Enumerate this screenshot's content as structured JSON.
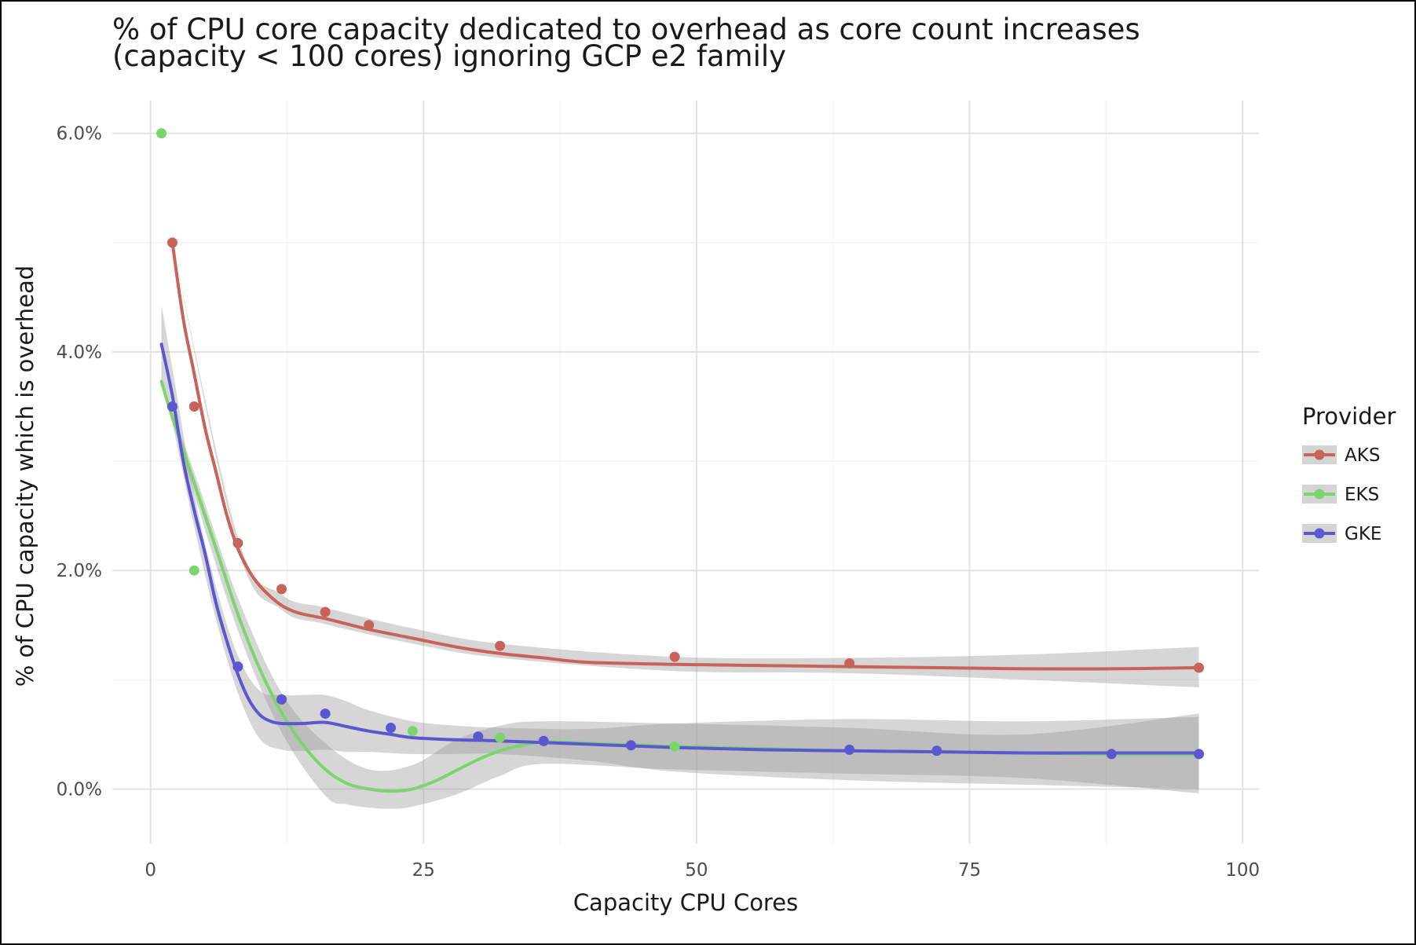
{
  "chart_data": {
    "type": "scatter",
    "title_lines": [
      "% of CPU core capacity dedicated to overhead as core count increases",
      "(capacity < 100 cores) ignoring GCP e2 family"
    ],
    "xlabel": "Capacity CPU Cores",
    "ylabel": "% of CPU capacity which is overhead",
    "xlim": [
      -3.5,
      101.5
    ],
    "ylim": [
      -0.5,
      6.3
    ],
    "x_ticks": [
      0,
      25,
      50,
      75,
      100
    ],
    "x_tick_labels": [
      "0",
      "25",
      "50",
      "75",
      "100"
    ],
    "y_ticks": [
      0,
      2,
      4,
      6
    ],
    "y_tick_labels": [
      "0.0%",
      "2.0%",
      "4.0%",
      "6.0%"
    ],
    "grid": true,
    "legend": {
      "title": "Provider",
      "position": "right"
    },
    "series": [
      {
        "name": "AKS",
        "color": "#c8635a",
        "points": [
          [
            2,
            5.0
          ],
          [
            4,
            3.5
          ],
          [
            8,
            2.25
          ],
          [
            12,
            1.83
          ],
          [
            16,
            1.62
          ],
          [
            20,
            1.5
          ],
          [
            32,
            1.31
          ],
          [
            48,
            1.21
          ],
          [
            64,
            1.15
          ],
          [
            96,
            1.11
          ]
        ],
        "smooth": [
          [
            2,
            5.0
          ],
          [
            3,
            4.3
          ],
          [
            4,
            3.8
          ],
          [
            5,
            3.3
          ],
          [
            6,
            2.9
          ],
          [
            7,
            2.5
          ],
          [
            8,
            2.2
          ],
          [
            9,
            2.0
          ],
          [
            10,
            1.86
          ],
          [
            11,
            1.76
          ],
          [
            12,
            1.68
          ],
          [
            13,
            1.63
          ],
          [
            14,
            1.6
          ],
          [
            16,
            1.56
          ],
          [
            18,
            1.51
          ],
          [
            20,
            1.46
          ],
          [
            24,
            1.38
          ],
          [
            28,
            1.3
          ],
          [
            32,
            1.24
          ],
          [
            36,
            1.2
          ],
          [
            40,
            1.16
          ],
          [
            48,
            1.14
          ],
          [
            56,
            1.13
          ],
          [
            64,
            1.12
          ],
          [
            72,
            1.11
          ],
          [
            80,
            1.1
          ],
          [
            88,
            1.1
          ],
          [
            96,
            1.11
          ]
        ],
        "band_upper": [
          [
            2,
            5.0
          ],
          [
            8,
            2.3
          ],
          [
            12,
            1.78
          ],
          [
            16,
            1.66
          ],
          [
            24,
            1.47
          ],
          [
            32,
            1.33
          ],
          [
            48,
            1.21
          ],
          [
            64,
            1.2
          ],
          [
            80,
            1.23
          ],
          [
            96,
            1.3
          ]
        ],
        "band_lower": [
          [
            2,
            5.0
          ],
          [
            8,
            2.2
          ],
          [
            12,
            1.64
          ],
          [
            16,
            1.51
          ],
          [
            24,
            1.33
          ],
          [
            32,
            1.2
          ],
          [
            48,
            1.08
          ],
          [
            64,
            1.06
          ],
          [
            80,
            1.0
          ],
          [
            96,
            0.93
          ]
        ]
      },
      {
        "name": "EKS",
        "color": "#7bd46d",
        "points": [
          [
            1,
            6.0
          ],
          [
            2,
            3.5
          ],
          [
            4,
            2.0
          ],
          [
            8,
            1.12
          ],
          [
            12,
            0.82
          ],
          [
            24,
            0.53
          ],
          [
            32,
            0.47
          ],
          [
            36,
            0.44
          ],
          [
            48,
            0.39
          ],
          [
            64,
            0.36
          ],
          [
            72,
            0.35
          ],
          [
            96,
            0.32
          ]
        ],
        "smooth": [
          [
            1,
            3.73
          ],
          [
            2,
            3.4
          ],
          [
            4,
            2.8
          ],
          [
            6,
            2.2
          ],
          [
            8,
            1.6
          ],
          [
            10,
            1.1
          ],
          [
            12,
            0.7
          ],
          [
            14,
            0.4
          ],
          [
            16,
            0.18
          ],
          [
            18,
            0.05
          ],
          [
            20,
            0.0
          ],
          [
            22,
            -0.02
          ],
          [
            24,
            0.0
          ],
          [
            26,
            0.07
          ],
          [
            28,
            0.17
          ],
          [
            30,
            0.27
          ],
          [
            32,
            0.35
          ],
          [
            34,
            0.4
          ],
          [
            36,
            0.43
          ],
          [
            40,
            0.42
          ],
          [
            48,
            0.39
          ],
          [
            56,
            0.37
          ],
          [
            64,
            0.35
          ],
          [
            72,
            0.34
          ],
          [
            80,
            0.33
          ],
          [
            88,
            0.32
          ],
          [
            96,
            0.32
          ]
        ],
        "band_upper": [
          [
            1,
            3.73
          ],
          [
            4,
            2.9
          ],
          [
            8,
            1.75
          ],
          [
            12,
            0.88
          ],
          [
            16,
            0.42
          ],
          [
            20,
            0.18
          ],
          [
            24,
            0.22
          ],
          [
            28,
            0.45
          ],
          [
            32,
            0.58
          ],
          [
            36,
            0.62
          ],
          [
            48,
            0.6
          ],
          [
            64,
            0.56
          ],
          [
            80,
            0.5
          ],
          [
            96,
            0.69
          ]
        ],
        "band_lower": [
          [
            1,
            3.73
          ],
          [
            4,
            2.7
          ],
          [
            8,
            1.45
          ],
          [
            12,
            0.52
          ],
          [
            16,
            -0.06
          ],
          [
            18,
            -0.14
          ],
          [
            20,
            -0.17
          ],
          [
            22,
            -0.18
          ],
          [
            24,
            -0.16
          ],
          [
            28,
            -0.05
          ],
          [
            32,
            0.12
          ],
          [
            36,
            0.23
          ],
          [
            48,
            0.18
          ],
          [
            64,
            0.14
          ],
          [
            80,
            0.1
          ],
          [
            96,
            -0.04
          ]
        ]
      },
      {
        "name": "GKE",
        "color": "#5b57d1",
        "points": [
          [
            2,
            3.5
          ],
          [
            8,
            1.12
          ],
          [
            12,
            0.82
          ],
          [
            16,
            0.69
          ],
          [
            22,
            0.56
          ],
          [
            30,
            0.48
          ],
          [
            36,
            0.44
          ],
          [
            44,
            0.4
          ],
          [
            64,
            0.36
          ],
          [
            72,
            0.35
          ],
          [
            88,
            0.32
          ],
          [
            96,
            0.32
          ]
        ],
        "smooth": [
          [
            1,
            4.07
          ],
          [
            2,
            3.6
          ],
          [
            3,
            3.0
          ],
          [
            4,
            2.55
          ],
          [
            5,
            2.15
          ],
          [
            6,
            1.7
          ],
          [
            7,
            1.35
          ],
          [
            8,
            1.05
          ],
          [
            9,
            0.82
          ],
          [
            10,
            0.68
          ],
          [
            11,
            0.62
          ],
          [
            12,
            0.6
          ],
          [
            14,
            0.6
          ],
          [
            16,
            0.61
          ],
          [
            18,
            0.57
          ],
          [
            20,
            0.53
          ],
          [
            22,
            0.5
          ],
          [
            24,
            0.47
          ],
          [
            28,
            0.45
          ],
          [
            32,
            0.44
          ],
          [
            40,
            0.41
          ],
          [
            48,
            0.38
          ],
          [
            56,
            0.36
          ],
          [
            64,
            0.35
          ],
          [
            72,
            0.34
          ],
          [
            80,
            0.33
          ],
          [
            88,
            0.33
          ],
          [
            96,
            0.33
          ]
        ],
        "band_upper": [
          [
            1,
            4.43
          ],
          [
            2,
            3.85
          ],
          [
            4,
            2.7
          ],
          [
            6,
            1.85
          ],
          [
            8,
            1.22
          ],
          [
            10,
            0.9
          ],
          [
            12,
            0.86
          ],
          [
            14,
            0.86
          ],
          [
            16,
            0.86
          ],
          [
            18,
            0.8
          ],
          [
            20,
            0.72
          ],
          [
            24,
            0.62
          ],
          [
            28,
            0.58
          ],
          [
            32,
            0.56
          ],
          [
            40,
            0.55
          ],
          [
            48,
            0.6
          ],
          [
            64,
            0.64
          ],
          [
            80,
            0.62
          ],
          [
            96,
            0.66
          ]
        ],
        "band_lower": [
          [
            1,
            3.71
          ],
          [
            2,
            3.35
          ],
          [
            4,
            2.4
          ],
          [
            6,
            1.55
          ],
          [
            8,
            0.88
          ],
          [
            10,
            0.46
          ],
          [
            12,
            0.36
          ],
          [
            14,
            0.35
          ],
          [
            16,
            0.36
          ],
          [
            18,
            0.34
          ],
          [
            20,
            0.34
          ],
          [
            24,
            0.32
          ],
          [
            28,
            0.32
          ],
          [
            32,
            0.32
          ],
          [
            40,
            0.26
          ],
          [
            48,
            0.16
          ],
          [
            64,
            0.08
          ],
          [
            80,
            0.04
          ],
          [
            96,
            0.0
          ]
        ]
      }
    ]
  }
}
